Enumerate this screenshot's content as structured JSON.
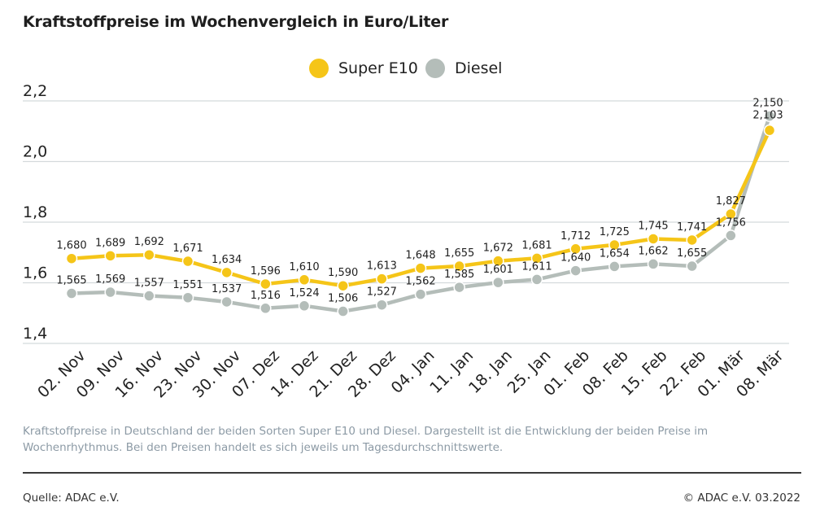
{
  "title": "Kraftstoffpreise im Wochenvergleich in Euro/Liter",
  "description": "Kraftstoffpreise in Deutschland der beiden Sorten Super E10 und Diesel. Dargestellt ist die Entwicklung der beiden Preise im Wochenrhythmus. Bei den Preisen handelt es sich jeweils um Tagesdurchschnittswerte.",
  "source": "Quelle: ADAC e.V.",
  "copyright": "© ADAC e.V. 03.2022",
  "colors": {
    "super_e10": "#f5c518",
    "diesel": "#b4bdb9",
    "grid": "#d4d9dc"
  },
  "chart_data": {
    "type": "line",
    "categories": [
      "02. Nov",
      "09. Nov",
      "16. Nov",
      "23. Nov",
      "30. Nov",
      "07. Dez",
      "14. Dez",
      "21. Dez",
      "28. Dez",
      "04. Jan",
      "11. Jan",
      "18. Jan",
      "25. Jan",
      "01. Feb",
      "08. Feb",
      "15. Feb",
      "22. Feb",
      "01. Mär",
      "08. Mär"
    ],
    "series": [
      {
        "name": "Super E10",
        "color": "#f5c518",
        "values": [
          1.68,
          1.689,
          1.692,
          1.671,
          1.634,
          1.596,
          1.61,
          1.59,
          1.613,
          1.648,
          1.655,
          1.672,
          1.681,
          1.712,
          1.725,
          1.745,
          1.741,
          1.827,
          2.103
        ],
        "labels": [
          "1,680",
          "1,689",
          "1,692",
          "1,671",
          "1,634",
          "1,596",
          "1,610",
          "1,590",
          "1,613",
          "1,648",
          "1,655",
          "1,672",
          "1,681",
          "1,712",
          "1,725",
          "1,745",
          "1,741",
          "1,827",
          "2,103"
        ]
      },
      {
        "name": "Diesel",
        "color": "#b4bdb9",
        "values": [
          1.565,
          1.569,
          1.557,
          1.551,
          1.537,
          1.516,
          1.524,
          1.506,
          1.527,
          1.562,
          1.585,
          1.601,
          1.611,
          1.64,
          1.654,
          1.662,
          1.655,
          1.756,
          2.15
        ],
        "labels": [
          "1,565",
          "1,569",
          "1,557",
          "1,551",
          "1,537",
          "1,516",
          "1,524",
          "1,506",
          "1,527",
          "1,562",
          "1,585",
          "1,601",
          "1,611",
          "1,640",
          "1,654",
          "1,662",
          "1,655",
          "1,756",
          "2,150"
        ]
      }
    ],
    "yticks": [
      1.4,
      1.6,
      1.8,
      2.0,
      2.2
    ],
    "ytick_labels": [
      "1,4",
      "1,6",
      "1,8",
      "2,0",
      "2,2"
    ],
    "ylim": [
      1.4,
      2.2
    ],
    "grid": true,
    "legend_position": "top-center"
  }
}
